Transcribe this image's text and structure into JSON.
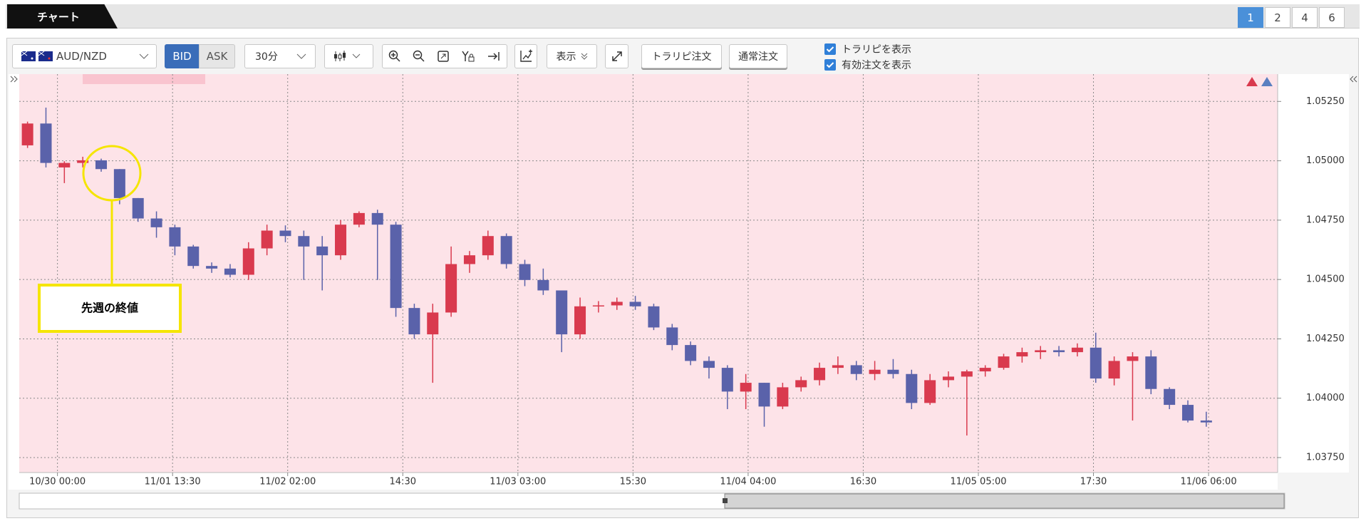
{
  "tab_title": "チャート",
  "pages": [
    "1",
    "2",
    "4",
    "6"
  ],
  "toolbar": {
    "pair": "AUD/NZD",
    "bid": "BID",
    "ask": "ASK",
    "interval": "30分",
    "display": "表示",
    "trail_order": "トラリピ注文",
    "normal_order": "通常注文",
    "show_trail": "トラリピを表示",
    "show_orders": "有効注文を表示"
  },
  "annotation": "先週の終値",
  "chart_data": {
    "type": "candlestick",
    "x": [
      -6.5,
      -2.5,
      1.5,
      5.5,
      9.5,
      13.5,
      17.5,
      21.5,
      25.5,
      29.5,
      33.5,
      37.5,
      41.5,
      45.5,
      49.5,
      53.5,
      57.5,
      61.5,
      65.5,
      69.5,
      73.5,
      77.5,
      81.5,
      85.5,
      89.5,
      93.5,
      97.5,
      101.5,
      105.5,
      109.5,
      113.5,
      117.5,
      121.5,
      125.5,
      129.5,
      133.5,
      137.5,
      141.5,
      145.5,
      149.5,
      153.5,
      157.5,
      161.5,
      165.5,
      169.5,
      173.5,
      177.5,
      181.5,
      185.5,
      189.5,
      193.5,
      197.5,
      201.5,
      205.5,
      209.5,
      213.5,
      217.5,
      221.5,
      225.5,
      229.5,
      233.5,
      237.5,
      241.5,
      245.5,
      249.5
    ],
    "open": [
      1.05065,
      1.05157,
      1.04972,
      1.04991,
      1.05002,
      1.04965,
      1.04843,
      1.04757,
      1.0472,
      1.04639,
      1.04557,
      1.04546,
      1.0452,
      1.04631,
      1.04706,
      1.04683,
      1.04639,
      1.04602,
      1.04731,
      1.0478,
      1.04731,
      1.0438,
      1.04269,
      1.04361,
      1.04565,
      1.04602,
      1.04683,
      1.04565,
      1.04498,
      1.04454,
      1.04269,
      1.04387,
      1.04391,
      1.04406,
      1.04387,
      1.04298,
      1.04224,
      1.04157,
      1.04128,
      1.04028,
      1.04065,
      1.03965,
      1.04046,
      1.04076,
      1.04128,
      1.04139,
      1.04102,
      1.0412,
      1.04102,
      1.0398,
      1.04076,
      1.04091,
      1.04113,
      1.04128,
      1.04176,
      1.04194,
      1.04202,
      1.04194,
      1.04213,
      1.04083,
      1.04157,
      1.04176,
      1.04039,
      1.03972,
      1.03906
    ],
    "high": [
      1.05165,
      1.05224,
      1.04998,
      1.05017,
      1.05009,
      1.04965,
      1.04843,
      1.04787,
      1.04731,
      1.04646,
      1.04572,
      1.04565,
      1.04657,
      1.04731,
      1.04728,
      1.04706,
      1.04683,
      1.0475,
      1.04787,
      1.04794,
      1.04743,
      1.04398,
      1.04398,
      1.04639,
      1.0462,
      1.04706,
      1.04694,
      1.04583,
      1.04546,
      1.04454,
      1.04424,
      1.04409,
      1.04424,
      1.04431,
      1.04398,
      1.04313,
      1.04239,
      1.04176,
      1.04139,
      1.04102,
      1.04065,
      1.04065,
      1.04091,
      1.0415,
      1.04176,
      1.04157,
      1.04157,
      1.04165,
      1.0412,
      1.04102,
      1.04113,
      1.0412,
      1.04139,
      1.04187,
      1.04213,
      1.0422,
      1.0422,
      1.04231,
      1.04276,
      1.04176,
      1.04194,
      1.04202,
      1.04046,
      1.03991,
      1.03943
    ],
    "low": [
      1.05054,
      1.04972,
      1.04906,
      1.04972,
      1.04954,
      1.04817,
      1.04743,
      1.04676,
      1.04602,
      1.04546,
      1.04528,
      1.04509,
      1.04498,
      1.04602,
      1.04657,
      1.04498,
      1.04454,
      1.04583,
      1.0472,
      1.04498,
      1.04343,
      1.0425,
      1.04065,
      1.04343,
      1.04528,
      1.04583,
      1.04546,
      1.04472,
      1.04435,
      1.04194,
      1.0425,
      1.04361,
      1.04372,
      1.04372,
      1.04287,
      1.04202,
      1.04139,
      1.04083,
      1.03954,
      1.03954,
      1.0388,
      1.03954,
      1.04028,
      1.04054,
      1.04102,
      1.04076,
      1.04076,
      1.04083,
      1.03954,
      1.03972,
      1.04046,
      1.03843,
      1.04091,
      1.0412,
      1.0415,
      1.04165,
      1.04176,
      1.04176,
      1.04065,
      1.04054,
      1.03906,
      1.04017,
      1.03954,
      1.03898,
      1.0388
    ],
    "close": [
      1.05157,
      1.04991,
      1.04991,
      1.05002,
      1.04965,
      1.04843,
      1.04757,
      1.0472,
      1.04639,
      1.04557,
      1.04546,
      1.0452,
      1.04631,
      1.04706,
      1.04683,
      1.04639,
      1.04602,
      1.04731,
      1.0478,
      1.04731,
      1.0438,
      1.04269,
      1.04361,
      1.04565,
      1.04602,
      1.04683,
      1.04565,
      1.04498,
      1.04454,
      1.04269,
      1.04387,
      1.04391,
      1.04406,
      1.04387,
      1.04298,
      1.04224,
      1.04157,
      1.04128,
      1.04028,
      1.04065,
      1.03965,
      1.04046,
      1.04076,
      1.04128,
      1.04139,
      1.04102,
      1.0412,
      1.04102,
      1.0398,
      1.04076,
      1.04091,
      1.04113,
      1.04128,
      1.04176,
      1.04194,
      1.04202,
      1.04194,
      1.04213,
      1.04083,
      1.04157,
      1.04176,
      1.04039,
      1.03972,
      1.03906,
      1.03898
    ],
    "up_color": "#d93a4e",
    "down_color": "#5a62aa",
    "xlim": [
      -8.3,
      265
    ],
    "xticks": [
      {
        "value": 0,
        "label": "10/30 00:00"
      },
      {
        "value": 25,
        "label": "11/01 13:30"
      },
      {
        "value": 50,
        "label": "11/02 02:00"
      },
      {
        "value": 75,
        "label": "14:30"
      },
      {
        "value": 100,
        "label": "11/03 03:00"
      },
      {
        "value": 125,
        "label": "15:30"
      },
      {
        "value": 150,
        "label": "11/04 04:00"
      },
      {
        "value": 175,
        "label": "16:30"
      },
      {
        "value": 200,
        "label": "11/05 05:00"
      },
      {
        "value": 225,
        "label": "17:30"
      },
      {
        "value": 250,
        "label": "11/06 06:00"
      }
    ],
    "ylim": [
      1.03687,
      1.05365
    ],
    "yticks": [
      {
        "value": 1.0375,
        "label": "1.03750"
      },
      {
        "value": 1.04,
        "label": "1.04000"
      },
      {
        "value": 1.0425,
        "label": "1.04250"
      },
      {
        "value": 1.045,
        "label": "1.04500"
      },
      {
        "value": 1.0475,
        "label": "1.04750"
      },
      {
        "value": 1.05,
        "label": "1.05000"
      },
      {
        "value": 1.0525,
        "label": "1.05250"
      }
    ],
    "grid": true
  }
}
